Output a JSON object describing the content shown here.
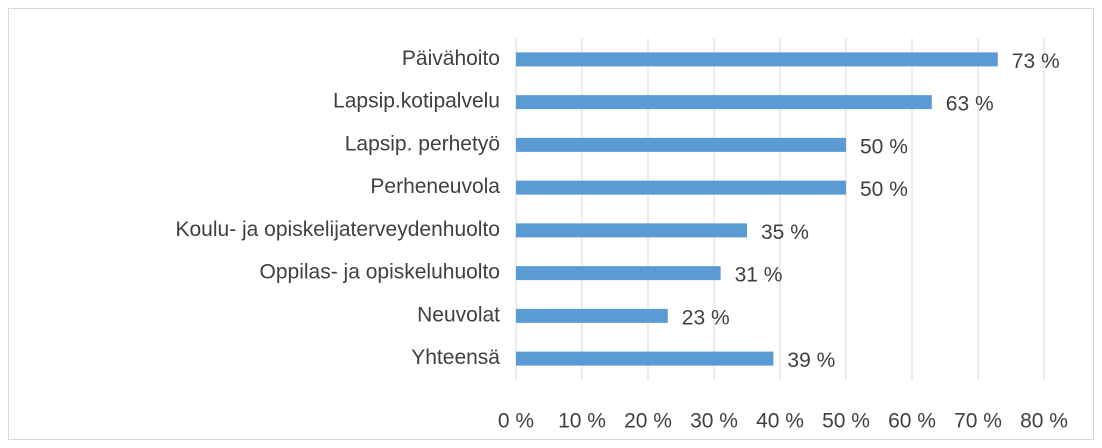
{
  "chart_data": {
    "type": "bar",
    "orientation": "horizontal",
    "categories": [
      "Päivähoito",
      "Lapsip.kotipalvelu",
      "Lapsip. perhetyö",
      "Perheneuvola",
      "Koulu- ja opiskelijaterveydenhuolto",
      "Oppilas- ja opiskeluhuolto",
      "Neuvolat",
      "Yhteensä"
    ],
    "values": [
      73,
      63,
      50,
      50,
      35,
      31,
      23,
      39
    ],
    "value_labels": [
      "73 %",
      "63 %",
      "50 %",
      "50 %",
      "35 %",
      "31 %",
      "23 %",
      "39 %"
    ],
    "color": "#5b9bd5",
    "xlim": [
      0,
      80
    ],
    "xticks": [
      {
        "value": 0,
        "label": "0 %"
      },
      {
        "value": 10,
        "label": "10 %"
      },
      {
        "value": 20,
        "label": "20 %"
      },
      {
        "value": 30,
        "label": "30 %"
      },
      {
        "value": 40,
        "label": "40 %"
      },
      {
        "value": 50,
        "label": "50 %"
      },
      {
        "value": 60,
        "label": "60 %"
      },
      {
        "value": 70,
        "label": "70 %"
      },
      {
        "value": 80,
        "label": "80 %"
      }
    ],
    "grid": true
  }
}
